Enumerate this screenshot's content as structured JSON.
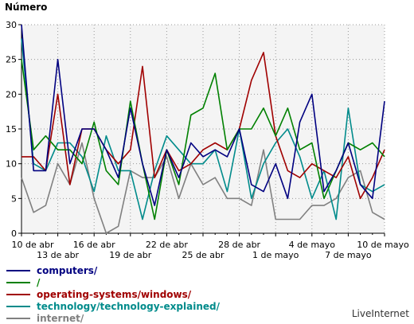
{
  "chart_data": {
    "type": "line",
    "ylabel": "Número",
    "ylim": [
      0,
      30
    ],
    "yticks": [
      0,
      5,
      10,
      15,
      20,
      25,
      30
    ],
    "x": [
      "10 de abr",
      "11 de abr",
      "12 de abr",
      "13 de abr",
      "14 de abr",
      "15 de abr",
      "16 de abr",
      "17 de abr",
      "18 de abr",
      "19 de abr",
      "20 de abr",
      "21 de abr",
      "22 de abr",
      "23 de abr",
      "24 de abr",
      "25 de abr",
      "26 de abr",
      "27 de abr",
      "28 de abr",
      "29 de abr",
      "30 de abr",
      "1 de mayo",
      "2 de mayo",
      "3 de mayo",
      "4 de mayo",
      "5 de mayo",
      "6 de mayo",
      "7 de mayo",
      "8 de mayo",
      "9 de mayo",
      "10 de mayo"
    ],
    "xticks_top": [
      "10 de abr",
      "16 de abr",
      "22 de abr",
      "28 de abr",
      "4 de mayo",
      "10 de mayo"
    ],
    "xticks_bottom": [
      "13 de abr",
      "19 de abr",
      "25 de abr",
      "1 de mayo",
      "7 de mayo"
    ],
    "grid": true,
    "series": [
      {
        "name": "computers/",
        "color": "#000080",
        "values": [
          30,
          9,
          9,
          25,
          10,
          15,
          15,
          12,
          8,
          18,
          10,
          4,
          12,
          8,
          13,
          11,
          12,
          11,
          15,
          7,
          6,
          10,
          5,
          16,
          20,
          6,
          9,
          13,
          7,
          5,
          19
        ]
      },
      {
        "name": "/",
        "color": "#008000",
        "values": [
          25,
          12,
          14,
          12,
          12,
          10,
          16,
          9,
          7,
          19,
          10,
          2,
          12,
          7,
          17,
          18,
          23,
          12,
          15,
          15,
          18,
          14,
          18,
          12,
          13,
          5,
          9,
          13,
          12,
          13,
          11
        ]
      },
      {
        "name": "operating-systems/windows/",
        "color": "#a00000",
        "values": [
          11,
          11,
          9,
          20,
          7,
          15,
          15,
          12,
          10,
          12,
          24,
          8,
          12,
          9,
          10,
          12,
          13,
          12,
          15,
          22,
          26,
          14,
          9,
          8,
          10,
          9,
          8,
          11,
          5,
          8,
          12
        ]
      },
      {
        "name": "technology/technology-explained/",
        "color": "#008b8b",
        "values": [
          28,
          10,
          9,
          13,
          13,
          11,
          6,
          14,
          9,
          9,
          2,
          9,
          14,
          12,
          10,
          10,
          12,
          6,
          15,
          5,
          10,
          13,
          15,
          11,
          5,
          9,
          2,
          18,
          7,
          6,
          7
        ]
      },
      {
        "name": "internet/",
        "color": "#808080",
        "values": [
          8,
          3,
          4,
          10,
          7,
          13,
          5,
          0,
          1,
          9,
          8,
          8,
          11,
          5,
          10,
          7,
          8,
          5,
          5,
          4,
          12,
          2,
          2,
          2,
          4,
          4,
          5,
          8,
          9,
          3,
          2
        ]
      }
    ]
  },
  "credit": "LiveInternet"
}
